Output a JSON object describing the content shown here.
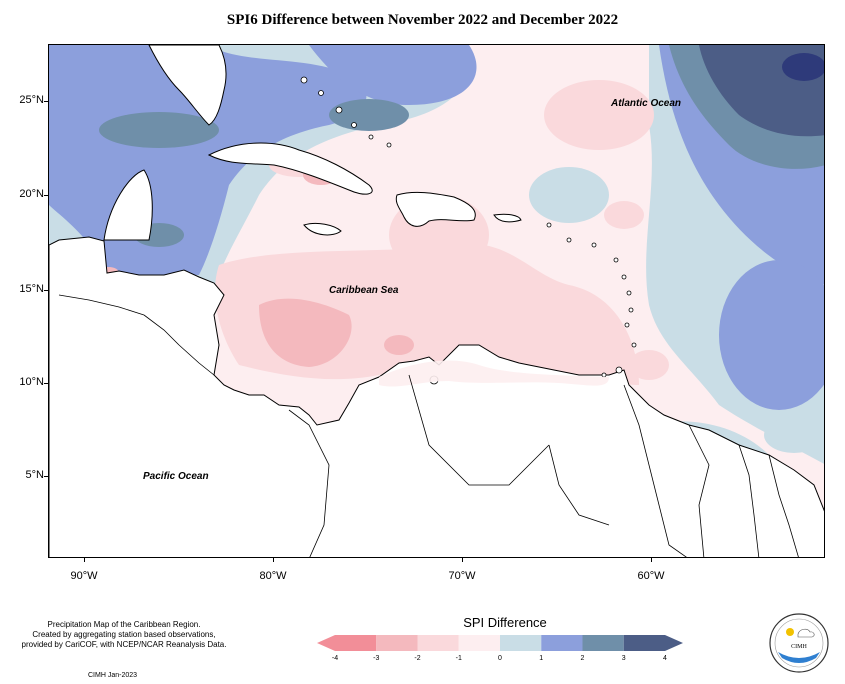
{
  "title": "SPI6 Difference between November 2022 and December 2022",
  "map_labels": {
    "atlantic": "Atlantic Ocean",
    "caribbean": "Caribbean Sea",
    "pacific": "Pacific Ocean"
  },
  "axes": {
    "y_ticks": [
      "25°N",
      "20°N",
      "15°N",
      "10°N",
      "5°N"
    ],
    "x_ticks": [
      "90°W",
      "80°W",
      "70°W",
      "60°W"
    ]
  },
  "legend": {
    "title": "SPI Difference",
    "ticks": [
      "-4",
      "-3",
      "-2",
      "-1",
      "0",
      "1",
      "2",
      "3",
      "4"
    ],
    "colors": [
      "#f28e98",
      "#f4b9be",
      "#fad9dc",
      "#fdeef0",
      "#c9dde6",
      "#8c9fdc",
      "#6f8fa9",
      "#4c5d86"
    ]
  },
  "note": {
    "line1": "Precipitation Map of the Caribbean Region.",
    "line2": "Created by aggregating station based observations,",
    "line3": "provided by CariCOF, with NCEP/NCAR Reanalysis Data."
  },
  "footer": "CIMH Jan-2023",
  "logo": {
    "name": "CIMH"
  }
}
